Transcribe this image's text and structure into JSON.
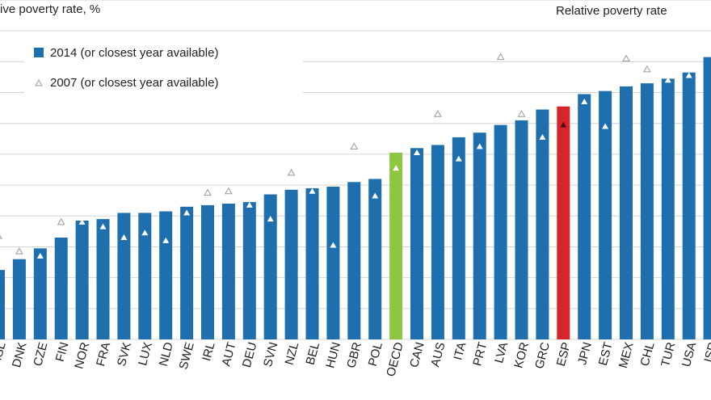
{
  "chart_data": {
    "type": "bar",
    "y_label_left": "Relative poverty rate, %",
    "y_label_right": "Relative poverty rate",
    "categories": [
      "ISL",
      "DNK",
      "CZE",
      "FIN",
      "NOR",
      "FRA",
      "SVK",
      "LUX",
      "NLD",
      "SWE",
      "IRL",
      "AUT",
      "DEU",
      "SVN",
      "NZL",
      "BEL",
      "HUN",
      "GBR",
      "POL",
      "OECD",
      "CAN",
      "AUS",
      "ITA",
      "PRT",
      "LVA",
      "KOR",
      "GRC",
      "ESP",
      "JPN",
      "EST",
      "MEX",
      "CHL",
      "TUR",
      "USA",
      "ISR"
    ],
    "series": [
      {
        "name": "2014 (or closest year available)",
        "color": "#1f6fae",
        "colors": [
          "#1f6fae",
          "#1f6fae",
          "#1f6fae",
          "#1f6fae",
          "#1f6fae",
          "#1f6fae",
          "#1f6fae",
          "#1f6fae",
          "#1f6fae",
          "#1f6fae",
          "#1f6fae",
          "#1f6fae",
          "#1f6fae",
          "#1f6fae",
          "#1f6fae",
          "#1f6fae",
          "#1f6fae",
          "#1f6fae",
          "#1f6fae",
          "#8dc63f",
          "#1f6fae",
          "#1f6fae",
          "#1f6fae",
          "#1f6fae",
          "#1f6fae",
          "#1f6fae",
          "#1f6fae",
          "#d7262b",
          "#1f6fae",
          "#1f6fae",
          "#1f6fae",
          "#1f6fae",
          "#1f6fae",
          "#1f6fae",
          "#1f6fae"
        ],
        "values": [
          4.5,
          5.2,
          5.9,
          6.6,
          7.7,
          7.8,
          8.2,
          8.2,
          8.3,
          8.6,
          8.7,
          8.8,
          8.9,
          9.4,
          9.7,
          9.8,
          9.9,
          10.2,
          10.4,
          12.1,
          12.4,
          12.6,
          13.1,
          13.4,
          13.9,
          14.2,
          14.9,
          15.1,
          15.9,
          16.1,
          16.4,
          16.6,
          16.9,
          17.3,
          18.3
        ]
      },
      {
        "name": "2007 (or closest year available)",
        "color": "#9a9a9a",
        "values": [
          6.7,
          5.7,
          5.4,
          7.6,
          7.6,
          7.3,
          6.6,
          6.9,
          6.4,
          8.2,
          9.5,
          9.6,
          8.7,
          7.8,
          10.8,
          9.6,
          6.1,
          12.5,
          9.3,
          11.1,
          12.1,
          14.6,
          11.7,
          12.5,
          18.3,
          14.6,
          13.1,
          13.9,
          15.4,
          13.8,
          18.2,
          17.5,
          16.8,
          17.1,
          null
        ]
      }
    ],
    "ylim": [
      0,
      22
    ],
    "yticks": [
      0,
      2,
      4,
      6,
      8,
      10,
      12,
      14,
      16,
      18,
      20,
      22
    ],
    "grid": true
  }
}
